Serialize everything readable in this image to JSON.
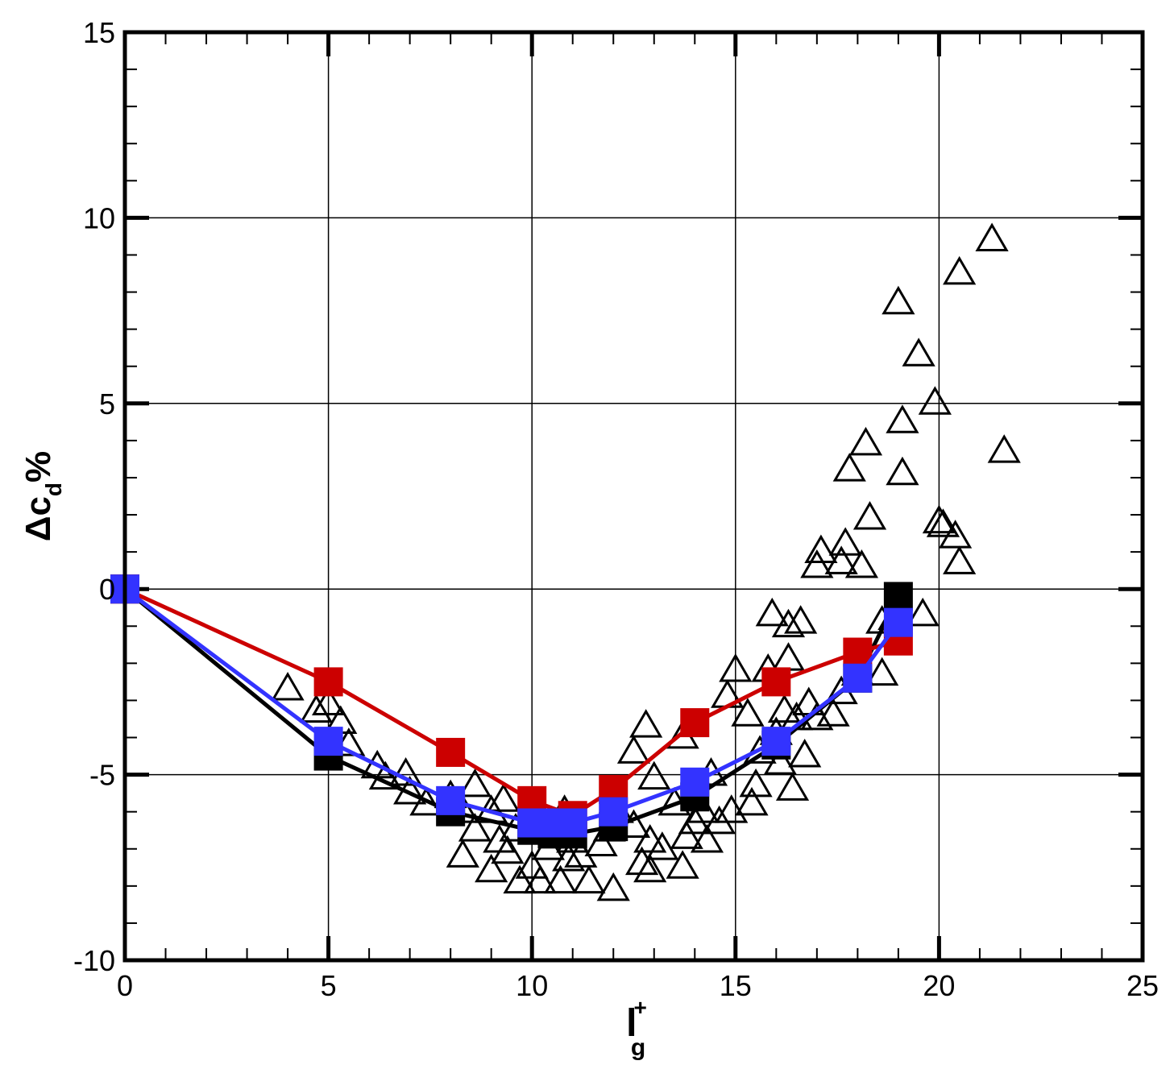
{
  "chart_data": {
    "type": "scatter",
    "x_axis": {
      "label_main": "l",
      "label_sup": "+",
      "label_sub": "g",
      "range": [
        0,
        25
      ],
      "major_ticks": [
        0,
        5,
        10,
        15,
        20,
        25
      ],
      "tick_labels": [
        "0",
        "5",
        "10",
        "15",
        "20",
        "25"
      ]
    },
    "y_axis": {
      "label_prefix": "Δc",
      "label_sub": "d",
      "label_suffix": "%",
      "range": [
        -10,
        15
      ],
      "major_ticks": [
        -10,
        -5,
        0,
        5,
        10,
        15
      ],
      "tick_labels": [
        "-10",
        "-5",
        "0",
        "5",
        "10",
        "15"
      ]
    },
    "grid": true,
    "series": [
      {
        "marker": "open-triangle",
        "color": "#000000",
        "points": [
          [
            4.0,
            -2.7
          ],
          [
            4.7,
            -3.3
          ],
          [
            5.0,
            -3.1
          ],
          [
            5.3,
            -3.6
          ],
          [
            5.5,
            -4.2
          ],
          [
            6.2,
            -4.8
          ],
          [
            6.4,
            -5.1
          ],
          [
            6.9,
            -5.0
          ],
          [
            7.0,
            -5.5
          ],
          [
            7.4,
            -5.8
          ],
          [
            8.0,
            -5.6
          ],
          [
            8.3,
            -6.0
          ],
          [
            8.6,
            -5.3
          ],
          [
            8.3,
            -7.2
          ],
          [
            8.6,
            -6.5
          ],
          [
            9.0,
            -6.0
          ],
          [
            9.3,
            -5.7
          ],
          [
            9.2,
            -6.8
          ],
          [
            9.0,
            -7.6
          ],
          [
            9.4,
            -7.1
          ],
          [
            9.6,
            -6.5
          ],
          [
            9.7,
            -7.9
          ],
          [
            10.0,
            -7.5
          ],
          [
            10.2,
            -7.9
          ],
          [
            10.4,
            -7.0
          ],
          [
            10.6,
            -6.4
          ],
          [
            10.8,
            -6.0
          ],
          [
            10.9,
            -7.3
          ],
          [
            10.7,
            -7.9
          ],
          [
            11.0,
            -6.8
          ],
          [
            11.2,
            -7.2
          ],
          [
            11.4,
            -7.9
          ],
          [
            11.7,
            -6.9
          ],
          [
            11.9,
            -6.5
          ],
          [
            12.0,
            -8.1
          ],
          [
            12.1,
            -6.0
          ],
          [
            12.5,
            -6.4
          ],
          [
            12.5,
            -4.4
          ],
          [
            12.7,
            -7.4
          ],
          [
            12.8,
            -3.7
          ],
          [
            12.9,
            -6.8
          ],
          [
            13.0,
            -5.1
          ],
          [
            12.9,
            -7.6
          ],
          [
            13.2,
            -7.0
          ],
          [
            13.5,
            -5.8
          ],
          [
            13.7,
            -4.0
          ],
          [
            13.7,
            -7.5
          ],
          [
            13.8,
            -6.7
          ],
          [
            14.0,
            -6.3
          ],
          [
            14.2,
            -6.0
          ],
          [
            14.3,
            -6.8
          ],
          [
            14.4,
            -5.0
          ],
          [
            14.6,
            -6.3
          ],
          [
            14.8,
            -2.9
          ],
          [
            14.9,
            -6.0
          ],
          [
            15.0,
            -2.2
          ],
          [
            15.3,
            -3.4
          ],
          [
            15.4,
            -5.8
          ],
          [
            15.5,
            -5.3
          ],
          [
            15.6,
            -4.4
          ],
          [
            15.8,
            -2.2
          ],
          [
            16.0,
            -3.9
          ],
          [
            15.9,
            -0.7
          ],
          [
            16.2,
            -3.3
          ],
          [
            16.1,
            -4.7
          ],
          [
            16.3,
            -1.0
          ],
          [
            16.3,
            -1.9
          ],
          [
            16.5,
            -3.5
          ],
          [
            16.4,
            -5.4
          ],
          [
            16.6,
            -0.9
          ],
          [
            16.7,
            -4.5
          ],
          [
            16.8,
            -3.1
          ],
          [
            17.0,
            -3.5
          ],
          [
            17.0,
            0.6
          ],
          [
            17.1,
            1.0
          ],
          [
            17.4,
            -3.4
          ],
          [
            17.6,
            -2.8
          ],
          [
            17.6,
            0.7
          ],
          [
            17.7,
            1.2
          ],
          [
            17.8,
            3.2
          ],
          [
            18.0,
            -2.3
          ],
          [
            18.1,
            0.6
          ],
          [
            18.2,
            3.9
          ],
          [
            18.3,
            1.9
          ],
          [
            18.6,
            -0.9
          ],
          [
            18.6,
            -2.3
          ],
          [
            18.9,
            -0.8
          ],
          [
            19.0,
            7.7
          ],
          [
            19.1,
            4.5
          ],
          [
            19.1,
            3.1
          ],
          [
            19.5,
            6.3
          ],
          [
            19.6,
            -0.7
          ],
          [
            19.9,
            5.0
          ],
          [
            20.0,
            1.8
          ],
          [
            20.1,
            1.7
          ],
          [
            20.4,
            1.4
          ],
          [
            20.5,
            8.5
          ],
          [
            20.5,
            0.7
          ],
          [
            21.3,
            9.4
          ],
          [
            21.6,
            3.7
          ]
        ]
      },
      {
        "marker": "filled-square",
        "color": "#000000",
        "x": [
          0,
          5,
          8,
          10,
          10.5,
          11,
          12,
          14,
          16,
          18,
          19
        ],
        "y": [
          0,
          -4.5,
          -6.0,
          -6.5,
          -6.6,
          -6.6,
          -6.4,
          -5.6,
          -4.2,
          -2.4,
          -0.2
        ]
      },
      {
        "marker": "filled-square",
        "color": "#cc0000",
        "x": [
          0,
          5,
          8,
          10,
          11,
          12,
          14,
          16,
          18,
          19
        ],
        "y": [
          0,
          -2.5,
          -4.4,
          -5.7,
          -6.1,
          -5.4,
          -3.6,
          -2.5,
          -1.7,
          -1.4
        ]
      },
      {
        "marker": "filled-square",
        "color": "#3333ff",
        "x": [
          0,
          5,
          8,
          10,
          10.5,
          11,
          12,
          14,
          16,
          18,
          19
        ],
        "y": [
          0,
          -4.1,
          -5.7,
          -6.3,
          -6.3,
          -6.3,
          -6.0,
          -5.2,
          -4.1,
          -2.4,
          -0.9
        ]
      }
    ]
  }
}
